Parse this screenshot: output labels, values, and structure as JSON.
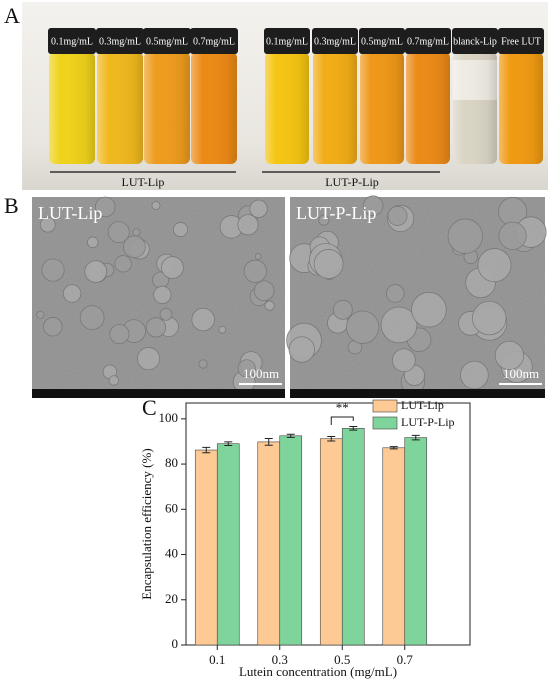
{
  "panel_a": {
    "label": "A",
    "left_vials": [
      "0.1mg/mL",
      "0.3mg/mL",
      "0.5mg/mL",
      "0.7mg/mL"
    ],
    "left_caption": "LUT-Lip",
    "right_vials": [
      "0.1mg/mL",
      "0.3mg/mL",
      "0.5mg/mL",
      "0.7mg/mL",
      "blanck-Lip",
      "Free LUT"
    ],
    "right_caption": "LUT-P-Lip"
  },
  "panel_b": {
    "label": "B",
    "images": [
      {
        "title": "LUT-Lip",
        "scale_bar": "100nm"
      },
      {
        "title": "LUT-P-Lip",
        "scale_bar": "100nm"
      }
    ]
  },
  "chart_data": {
    "type": "bar",
    "label": "C",
    "x_label": "Lutein concentration (mg/mL)",
    "y_label": "Encapsulation efficiency (%)",
    "categories": [
      "0.1",
      "0.3",
      "0.5",
      "0.7"
    ],
    "series": [
      {
        "name": "LUT-Lip",
        "color": "#fdc994",
        "values": [
          86.2,
          89.8,
          91.2,
          87.2
        ],
        "errors": [
          1.2,
          1.5,
          1.0,
          0.5
        ]
      },
      {
        "name": "LUT-P-Lip",
        "color": "#7fd49c",
        "values": [
          89.0,
          92.5,
          95.8,
          91.7
        ],
        "errors": [
          0.8,
          0.7,
          0.8,
          1.0
        ]
      }
    ],
    "ylim": [
      0,
      107
    ],
    "yticks": [
      0,
      20,
      40,
      60,
      80,
      100
    ],
    "annotation": "**"
  }
}
